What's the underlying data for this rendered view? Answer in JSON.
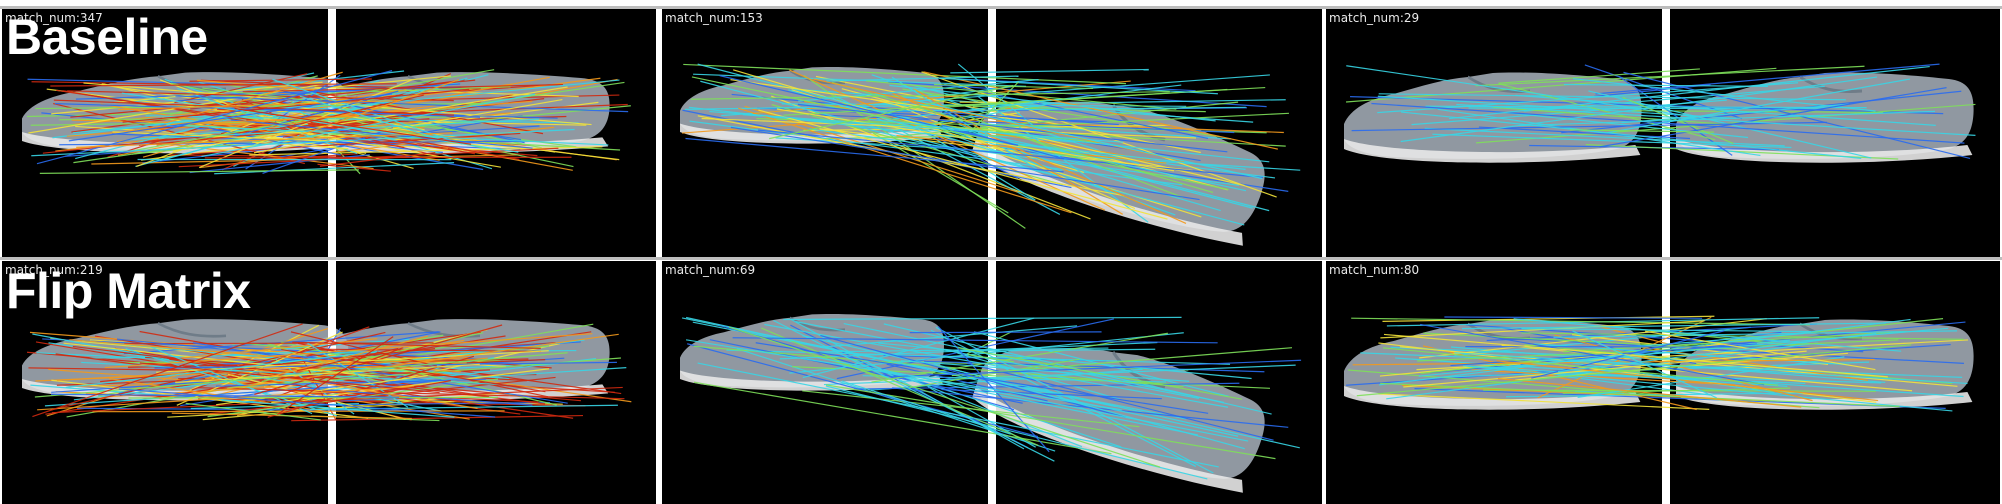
{
  "rows": [
    {
      "title": "Baseline"
    },
    {
      "title": "Flip Matrix"
    }
  ],
  "panels": [
    {
      "label": "match_num:347",
      "palette": "hot"
    },
    {
      "label": "match_num:153",
      "palette": "mixed"
    },
    {
      "label": "match_num:29",
      "palette": "cool"
    },
    {
      "label": "match_num:219",
      "palette": "hot"
    },
    {
      "label": "match_num:69",
      "palette": "cool"
    },
    {
      "label": "match_num:80",
      "palette": "mixed"
    }
  ],
  "colors": {
    "background": "#000000",
    "shoe": "#a9b3bd",
    "line_red": "#d12a10",
    "line_orange": "#f39a1c",
    "line_yellow": "#f2e33a",
    "line_green": "#7fe05a",
    "line_cyan": "#38d6e6",
    "line_blue": "#2a6cf0"
  }
}
